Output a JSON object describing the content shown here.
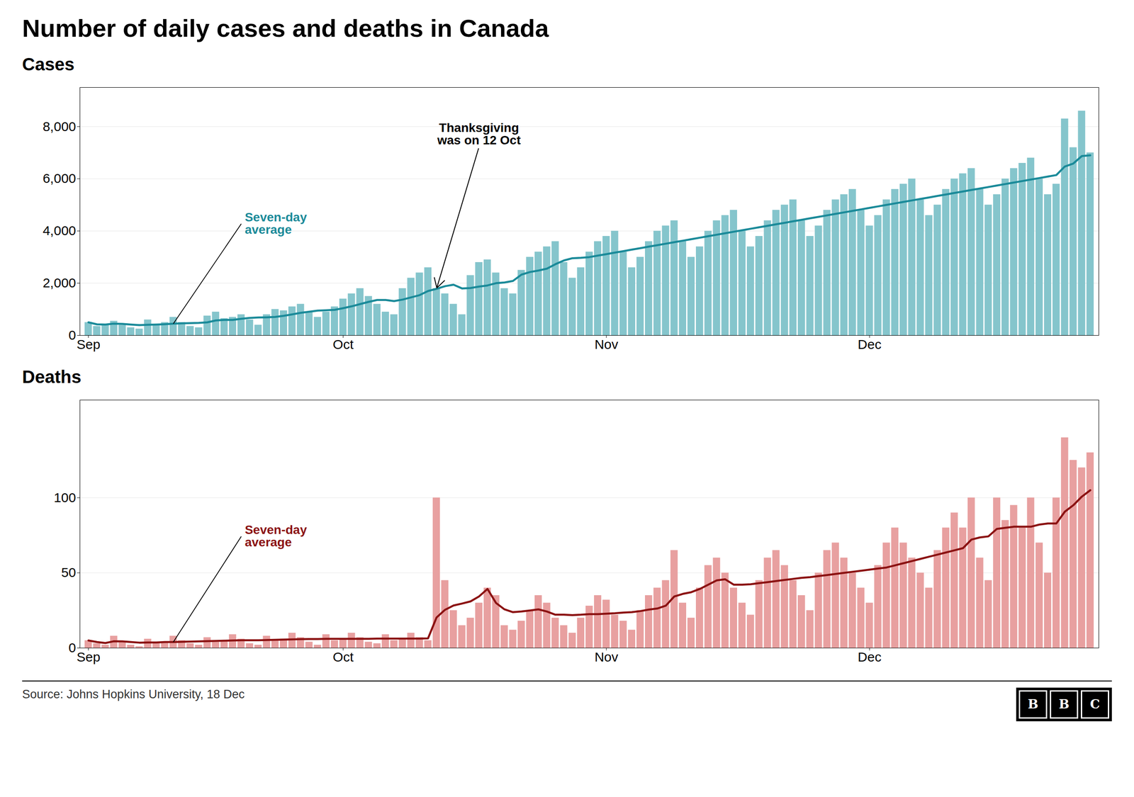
{
  "title": "Number of daily cases and deaths in Canada",
  "source": "Source: Johns Hopkins University, 18 Dec",
  "logo": "BBC",
  "chart_data": [
    {
      "type": "bar",
      "title": "Cases",
      "categories": [
        "Sep",
        null,
        null,
        null,
        null,
        null,
        null,
        null,
        null,
        null,
        null,
        null,
        null,
        null,
        null,
        null,
        null,
        null,
        null,
        null,
        null,
        null,
        null,
        null,
        null,
        null,
        null,
        null,
        null,
        null,
        "Oct",
        null,
        null,
        null,
        null,
        null,
        null,
        null,
        null,
        null,
        null,
        null,
        null,
        null,
        null,
        null,
        null,
        null,
        null,
        null,
        null,
        null,
        null,
        null,
        null,
        null,
        null,
        null,
        null,
        null,
        null,
        "Nov",
        null,
        null,
        null,
        null,
        null,
        null,
        null,
        null,
        null,
        null,
        null,
        null,
        null,
        null,
        null,
        null,
        null,
        null,
        null,
        null,
        null,
        null,
        null,
        null,
        null,
        null,
        null,
        null,
        null,
        null,
        "Dec",
        null,
        null,
        null,
        null,
        null,
        null,
        null,
        null,
        null,
        null,
        null,
        null,
        null,
        null,
        null,
        null,
        null,
        null,
        null,
        null,
        null,
        null,
        null,
        null,
        null,
        null
      ],
      "series": [
        {
          "type": "bar",
          "color": "#85c5cc",
          "values": [
            500,
            350,
            400,
            550,
            400,
            300,
            250,
            600,
            400,
            500,
            700,
            500,
            350,
            300,
            750,
            900,
            650,
            700,
            800,
            600,
            400,
            800,
            1000,
            950,
            1100,
            1200,
            900,
            700,
            900,
            1100,
            1400,
            1600,
            1800,
            1500,
            1200,
            900,
            800,
            1800,
            2200,
            2400,
            2600,
            1800,
            1600,
            1200,
            800,
            2300,
            2800,
            2900,
            2400,
            1800,
            1600,
            2500,
            3000,
            3200,
            3400,
            3600,
            2800,
            2200,
            2600,
            3200,
            3600,
            3800,
            4000,
            3200,
            2600,
            3000,
            3600,
            4000,
            4200,
            4400,
            3600,
            3000,
            3400,
            4000,
            4400,
            4600,
            4800,
            4000,
            3400,
            3800,
            4400,
            4800,
            5000,
            5200,
            4400,
            3800,
            4200,
            4800,
            5200,
            5400,
            5600,
            4800,
            4200,
            4600,
            5200,
            5600,
            5800,
            6000,
            5200,
            4600,
            5000,
            5600,
            6000,
            6200,
            6400,
            5600,
            5000,
            5400,
            6000,
            6400,
            6600,
            6800,
            6000,
            5400,
            5800,
            8300,
            7200,
            8600,
            7000
          ]
        },
        {
          "type": "line",
          "color": "#1a8a99",
          "values": [
            500,
            425,
            416.667,
            450,
            440,
            416.667,
            392.857,
            407.143,
            414.286,
            428.571,
            450,
            464.286,
            471.429,
            478.571,
            500,
            571.429,
            592.857,
            592.857,
            635.714,
            671.429,
            685.714,
            692.857,
            707.143,
            750,
            807.143,
            864.286,
            907.143,
            950,
            964.286,
            978.571,
            1042.857,
            1114.286,
            1200,
            1285.714,
            1357.143,
            1357.143,
            1314.286,
            1371.429,
            1457.143,
            1542.857,
            1700,
            1785.714,
            1885.714,
            1942.857,
            1800,
            1814.286,
            1871.429,
            1914.286,
            2000,
            2028.571,
            2085.714,
            2328.571,
            2428.571,
            2485.714,
            2557.143,
            2728.571,
            2871.429,
            2957.143,
            2971.429,
            3000,
            3057.143,
            3114.286,
            3171.429,
            3228.571,
            3285.714,
            3342.857,
            3400,
            3457.143,
            3514.286,
            3571.429,
            3628.571,
            3685.714,
            3742.857,
            3800,
            3857.143,
            3914.286,
            3971.429,
            4028.571,
            4085.714,
            4142.857,
            4200,
            4257.143,
            4314.286,
            4371.429,
            4428.571,
            4485.714,
            4542.857,
            4600,
            4657.143,
            4714.286,
            4771.429,
            4828.571,
            4885.714,
            4942.857,
            5000,
            5057.143,
            5114.286,
            5171.429,
            5228.571,
            5285.714,
            5342.857,
            5400,
            5457.143,
            5514.286,
            5571.429,
            5628.571,
            5685.714,
            5742.857,
            5800,
            5857.143,
            5914.286,
            5971.429,
            6028.571,
            6085.714,
            6142.857,
            6471.429,
            6585.714,
            6871.429,
            6900
          ]
        }
      ],
      "ylim": [
        0,
        9500
      ],
      "yticks": [
        0,
        {
          "value": 2000,
          "label": "2,000"
        },
        {
          "value": 4000,
          "label": "4,000"
        },
        {
          "value": 6000,
          "label": "6,000"
        },
        {
          "value": 8000,
          "label": "8,000"
        }
      ],
      "grid": true,
      "annotations": [
        {
          "text": "Seven-day\naverage",
          "x": 10,
          "color": "#1a8a99"
        },
        {
          "text": "Thanksgiving\nwas on 12 Oct",
          "x": 41,
          "color": "#000000"
        }
      ]
    },
    {
      "type": "bar",
      "title": "Deaths",
      "categories": [
        "Sep",
        null,
        null,
        null,
        null,
        null,
        null,
        null,
        null,
        null,
        null,
        null,
        null,
        null,
        null,
        null,
        null,
        null,
        null,
        null,
        null,
        null,
        null,
        null,
        null,
        null,
        null,
        null,
        null,
        null,
        "Oct",
        null,
        null,
        null,
        null,
        null,
        null,
        null,
        null,
        null,
        null,
        null,
        null,
        null,
        null,
        null,
        null,
        null,
        null,
        null,
        null,
        null,
        null,
        null,
        null,
        null,
        null,
        null,
        null,
        null,
        null,
        "Nov",
        null,
        null,
        null,
        null,
        null,
        null,
        null,
        null,
        null,
        null,
        null,
        null,
        null,
        null,
        null,
        null,
        null,
        null,
        null,
        null,
        null,
        null,
        null,
        null,
        null,
        null,
        null,
        null,
        null,
        null,
        "Dec",
        null,
        null,
        null,
        null,
        null,
        null,
        null,
        null,
        null,
        null,
        null,
        null,
        null,
        null,
        null,
        null,
        null,
        null,
        null,
        null,
        null,
        null,
        null,
        null,
        null,
        null
      ],
      "series": [
        {
          "type": "bar",
          "color": "#e8a0a0",
          "values": [
            5,
            3,
            2,
            8,
            4,
            2,
            1,
            6,
            3,
            4,
            8,
            5,
            3,
            2,
            7,
            4,
            5,
            9,
            6,
            3,
            2,
            8,
            5,
            6,
            10,
            7,
            4,
            2,
            9,
            5,
            6,
            10,
            7,
            4,
            3,
            9,
            5,
            6,
            10,
            7,
            5,
            100,
            45,
            25,
            15,
            20,
            30,
            40,
            35,
            15,
            12,
            18,
            25,
            35,
            30,
            20,
            15,
            10,
            20,
            28,
            35,
            32,
            22,
            18,
            12,
            25,
            35,
            40,
            45,
            65,
            30,
            20,
            40,
            55,
            60,
            50,
            40,
            30,
            22,
            45,
            60,
            65,
            55,
            45,
            35,
            25,
            50,
            65,
            70,
            60,
            50,
            40,
            30,
            55,
            70,
            80,
            70,
            60,
            50,
            40,
            65,
            80,
            90,
            80,
            100,
            60,
            45,
            100,
            85,
            95,
            80,
            100,
            70,
            50,
            100,
            140,
            125,
            120,
            130
          ]
        },
        {
          "type": "line",
          "color": "#8b1212",
          "values": [
            5,
            4,
            3.333,
            4.5,
            4.4,
            4,
            3.571,
            3.714,
            3.714,
            4,
            4,
            4.143,
            4.286,
            4.429,
            4.571,
            4.714,
            4.857,
            5,
            5.143,
            5.143,
            5.143,
            5.286,
            5.429,
            5.571,
            5.714,
            5.857,
            6,
            6,
            6.143,
            6.143,
            6.143,
            6.143,
            6.143,
            6.143,
            6.286,
            6.286,
            6.286,
            6.286,
            6.286,
            6.286,
            6.429,
            20.286,
            25.429,
            28.286,
            29.571,
            31,
            34.286,
            39.286,
            30,
            25.714,
            23.857,
            24.286,
            25,
            25.714,
            24.286,
            22.143,
            22.143,
            21.857,
            22.143,
            22.571,
            22.571,
            22.857,
            23.143,
            23.571,
            23.857,
            24.571,
            25.571,
            26.286,
            28.143,
            34.286,
            36,
            37.143,
            39.286,
            42.143,
            45,
            45.714,
            42.143,
            42.143,
            42.429,
            43.143,
            43.857,
            44.571,
            45.286,
            46,
            46.714,
            47.143,
            47.857,
            48.571,
            49.286,
            50,
            50.714,
            51.429,
            52.143,
            52.857,
            53.571,
            55,
            56.429,
            57.857,
            59.286,
            60.714,
            62.143,
            63.571,
            65,
            66.429,
            72.143,
            73.571,
            74.286,
            79.286,
            80,
            80.714,
            80.714,
            80.714,
            82.143,
            82.857,
            82.857,
            90.714,
            95,
            100.714,
            105
          ]
        }
      ],
      "ylim": [
        0,
        165
      ],
      "yticks": [
        0,
        50,
        100
      ],
      "grid": true,
      "annotations": [
        {
          "text": "Seven-day\naverage",
          "x": 10,
          "color": "#8b1212"
        }
      ]
    }
  ]
}
